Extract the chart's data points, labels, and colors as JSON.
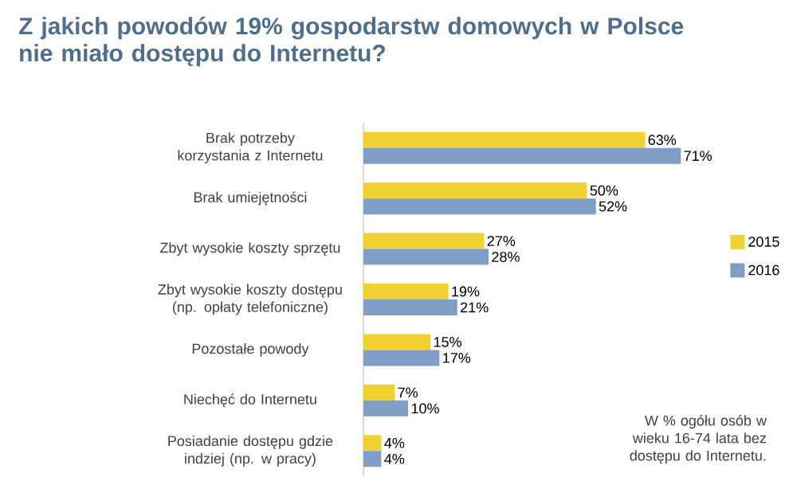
{
  "chart_data": {
    "type": "bar",
    "orientation": "horizontal",
    "title": "Z jakich powodów 19% gospodarstw domowych w Polsce nie miało dostępu do Internetu?",
    "categories": [
      "Brak potrzeby korzystania z Internetu",
      "Brak umiejętności",
      "Zbyt wysokie koszty sprzętu",
      "Zbyt wysokie koszty dostępu (np. opłaty telefoniczne)",
      "Pozostałe powody",
      "Niechęć do Internetu",
      "Posiadanie dostępu gdzie indziej (np. w pracy)"
    ],
    "series": [
      {
        "name": "2015",
        "color": "#f2d232",
        "values": [
          63,
          50,
          27,
          19,
          15,
          7,
          4
        ],
        "value_labels": [
          "63%",
          "50%",
          "27%",
          "19%",
          "15%",
          "7%",
          "4%"
        ]
      },
      {
        "name": "2016",
        "color": "#7f9ec6",
        "values": [
          71,
          52,
          28,
          21,
          17,
          10,
          4
        ],
        "value_labels": [
          "71%",
          "52%",
          "28%",
          "21%",
          "17%",
          "10%",
          "4%"
        ]
      }
    ],
    "legend": "right",
    "annotations": [
      "W % ogółu osób w wieku 16-74 lata bez dostępu do Internetu."
    ]
  }
}
